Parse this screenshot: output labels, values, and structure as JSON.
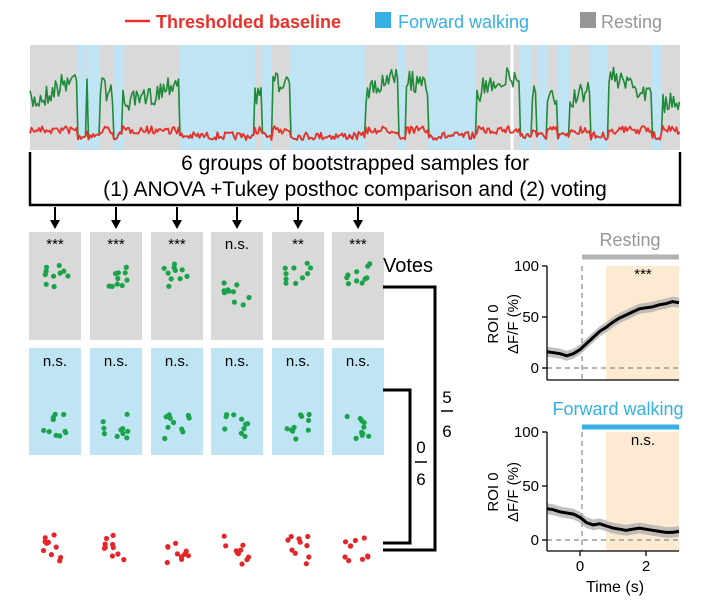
{
  "colors": {
    "baseline": "#e8312a",
    "forward": "#35afe4",
    "forward_fill": "#bfe4f4",
    "resting": "#969696",
    "resting_fill": "#d9d9d9",
    "green_trace": "#1e8a3a",
    "green_dots": "#1aa34a",
    "red_dots": "#e4262b",
    "highlight": "#fcebd2",
    "ci": "#a6a6a6"
  },
  "legend": {
    "baseline": "Thresholded baseline",
    "forward": "Forward walking",
    "resting": "Resting"
  },
  "bracket_text": {
    "line1": "6 groups of bootstrapped samples for",
    "line2": "(1) ANOVA +Tukey posthoc comparison and (2) voting"
  },
  "resting_sig": [
    "***",
    "***",
    "***",
    "n.s.",
    "**",
    "***"
  ],
  "forward_sig": [
    "n.s.",
    "n.s.",
    "n.s.",
    "n.s.",
    "n.s.",
    "n.s."
  ],
  "votes": {
    "label": "Votes",
    "forward_num": "0",
    "forward_den": "6",
    "resting_num": "5",
    "resting_den": "6"
  },
  "chart_data": [
    {
      "type": "line",
      "title": "Resting",
      "ylabel": "ROI 0 ΔF/F (%)",
      "xlabel": "",
      "xlim": [
        -1.0,
        3.0
      ],
      "ylim": [
        0,
        100
      ],
      "yticks": [
        0,
        50,
        100
      ],
      "annotation": "***",
      "x": [
        -1.0,
        -0.8,
        -0.6,
        -0.4,
        -0.2,
        0.0,
        0.2,
        0.4,
        0.6,
        0.8,
        1.0,
        1.2,
        1.4,
        1.6,
        1.8,
        2.0,
        2.2,
        2.4,
        2.6,
        2.8,
        3.0
      ],
      "y": [
        16,
        15,
        14,
        12,
        14,
        18,
        24,
        30,
        36,
        40,
        45,
        49,
        52,
        55,
        58,
        59,
        60,
        62,
        63,
        65,
        64
      ]
    },
    {
      "type": "line",
      "title": "Forward walking",
      "ylabel": "ROI 0 ΔF/F (%)",
      "xlabel": "Time (s)",
      "xlim": [
        -1.0,
        3.0
      ],
      "ylim": [
        0,
        100
      ],
      "yticks": [
        0,
        50,
        100
      ],
      "xticks": [
        0,
        2
      ],
      "annotation": "n.s.",
      "x": [
        -1.0,
        -0.8,
        -0.6,
        -0.4,
        -0.2,
        0.0,
        0.2,
        0.4,
        0.6,
        0.8,
        1.0,
        1.2,
        1.4,
        1.6,
        1.8,
        2.0,
        2.2,
        2.4,
        2.6,
        2.8,
        3.0
      ],
      "y": [
        29,
        28,
        26,
        25,
        24,
        21,
        16,
        14,
        15,
        13,
        11,
        10,
        9,
        10,
        11,
        10,
        9,
        8,
        7,
        7,
        8
      ]
    }
  ]
}
